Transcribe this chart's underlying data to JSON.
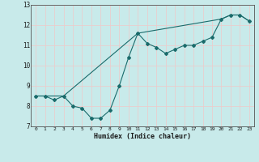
{
  "title": "",
  "xlabel": "Humidex (Indice chaleur)",
  "background_color": "#c8eaea",
  "grid_color": "#f0c8c8",
  "line_color": "#1a6b6b",
  "xlim": [
    -0.5,
    23.5
  ],
  "ylim": [
    7,
    13
  ],
  "yticks": [
    7,
    8,
    9,
    10,
    11,
    12,
    13
  ],
  "xticks": [
    0,
    1,
    2,
    3,
    4,
    5,
    6,
    7,
    8,
    9,
    10,
    11,
    12,
    13,
    14,
    15,
    16,
    17,
    18,
    19,
    20,
    21,
    22,
    23
  ],
  "series1_x": [
    0,
    1,
    2,
    3,
    4,
    5,
    6,
    7,
    8,
    9,
    10,
    11,
    12,
    13,
    14,
    15,
    16,
    17,
    18,
    19,
    20,
    21,
    22,
    23
  ],
  "series1_y": [
    8.5,
    8.5,
    8.3,
    8.5,
    8.0,
    7.9,
    7.4,
    7.4,
    7.8,
    9.0,
    10.4,
    11.6,
    11.1,
    10.9,
    10.6,
    10.8,
    11.0,
    11.0,
    11.2,
    11.4,
    12.3,
    12.5,
    12.5,
    12.2
  ],
  "series2_x": [
    0,
    3,
    11,
    20,
    21,
    22,
    23
  ],
  "series2_y": [
    8.5,
    8.5,
    11.6,
    12.3,
    12.5,
    12.5,
    12.2
  ]
}
